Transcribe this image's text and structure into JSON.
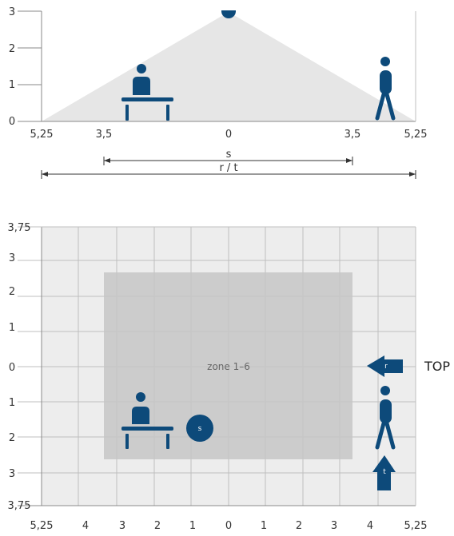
{
  "colors": {
    "accent": "#0d4a7a",
    "cone": "#e6e6e6",
    "grid_bg": "#ededed",
    "zone": "#c6c6c6",
    "grid_line": "#bfbfbf",
    "axis": "#8a8a8a"
  },
  "side_view": {
    "y_ticks": [
      "0",
      "1",
      "2",
      "3"
    ],
    "x_ticks": [
      "5,25",
      "3,5",
      "0",
      "3,5",
      "5,25"
    ],
    "dim_s_label": "s",
    "dim_rt_label": "r / t",
    "icons": [
      "person-at-desk-icon",
      "walking-person-icon",
      "sensor-icon"
    ]
  },
  "top_view": {
    "y_ticks": [
      "3,75",
      "3",
      "2",
      "1",
      "0",
      "1",
      "2",
      "3",
      "3,75"
    ],
    "x_ticks": [
      "5,25",
      "4",
      "3",
      "2",
      "1",
      "0",
      "1",
      "2",
      "3",
      "4",
      "5,25"
    ],
    "zone_label": "zone 1–6",
    "sensor_label": "s",
    "arrow_r_label": "r",
    "arrow_t_label": "t",
    "top_label": "TOP",
    "icons": [
      "person-at-desk-icon",
      "walking-person-icon",
      "sensor-icon",
      "arrow-left-icon",
      "arrow-up-icon"
    ]
  }
}
